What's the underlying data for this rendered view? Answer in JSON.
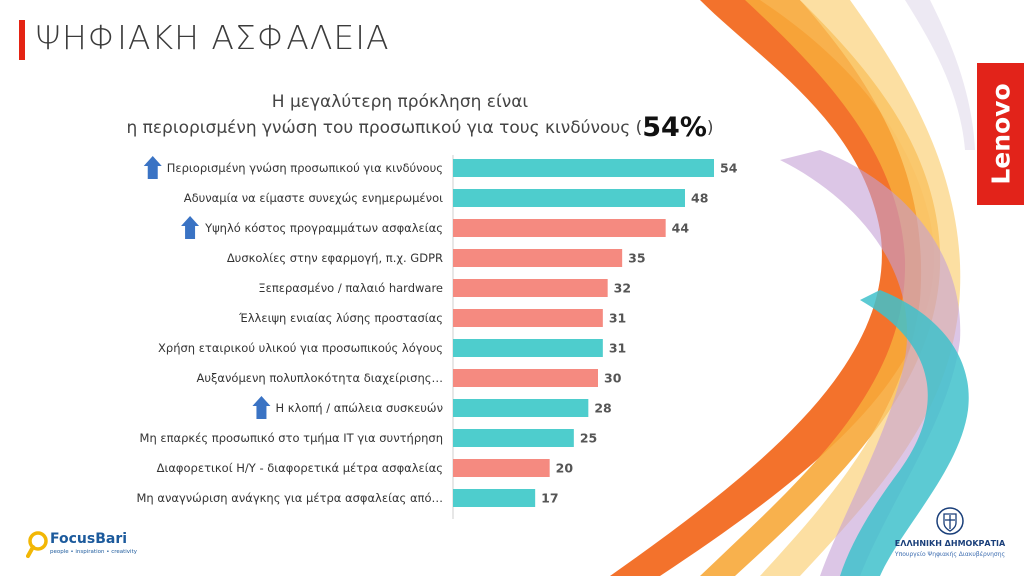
{
  "header": {
    "title": "ΨΗΦΙΑΚΗ ΑΣΦΑΛΕΙΑ"
  },
  "subtitle": {
    "line1": "Η μεγαλύτερη πρόκληση είναι",
    "line2": "η περιορισμένη γνώση του προσωπικού για τους κινδύνους",
    "open": "(",
    "highlight": "54%",
    "close": ")"
  },
  "colors": {
    "teal": "#4ecdcd",
    "salmon": "#f58a80",
    "arrow": "#3a73c4",
    "accent": "#e42313"
  },
  "chart_data": {
    "type": "bar",
    "orientation": "horizontal",
    "categories": [
      "Περιορισμένη γνώση προσωπικού για κινδύνους",
      "Αδυναμία να είμαστε συνεχώς ενημερωμένοι",
      "Υψηλό κόστος προγραμμάτων ασφαλείας",
      "Δυσκολίες στην εφαρμογή,  π.χ. GDPR",
      "Ξεπερασμένο / παλαιό hardware",
      "Έλλειψη ενιαίας λύσης προστασίας",
      "Χρήση εταιρικού υλικού για προσωπικούς λόγους",
      "Αυξανόμενη πολυπλοκότητα διαχείρισης…",
      "Η κλοπή / απώλεια συσκευών",
      "Μη επαρκές προσωπικό στο τμήμα IT για  συντήρηση",
      "Διαφορετικοί Η/Υ - διαφορετικά μέτρα ασφαλείας",
      "Μη αναγνώριση ανάγκης για μέτρα ασφαλείας από…"
    ],
    "values": [
      54,
      48,
      44,
      35,
      32,
      31,
      31,
      30,
      28,
      25,
      20,
      17
    ],
    "bar_colors": [
      "teal",
      "teal",
      "salmon",
      "salmon",
      "salmon",
      "salmon",
      "teal",
      "salmon",
      "teal",
      "teal",
      "salmon",
      "teal"
    ],
    "up_arrows": [
      true,
      false,
      true,
      false,
      false,
      false,
      false,
      false,
      true,
      false,
      false,
      false
    ],
    "xlim": [
      0,
      54
    ]
  },
  "brand": {
    "lenovo": "Lenovo",
    "focus_name": "FocusBari",
    "focus_tagline": "people • inspiration • creativity",
    "gov_name": "ΕΛΛΗΝΙΚΗ ΔΗΜΟΚΡΑΤΙΑ",
    "gov_sub": "Υπουργείο Ψηφιακής Διακυβέρνησης"
  }
}
